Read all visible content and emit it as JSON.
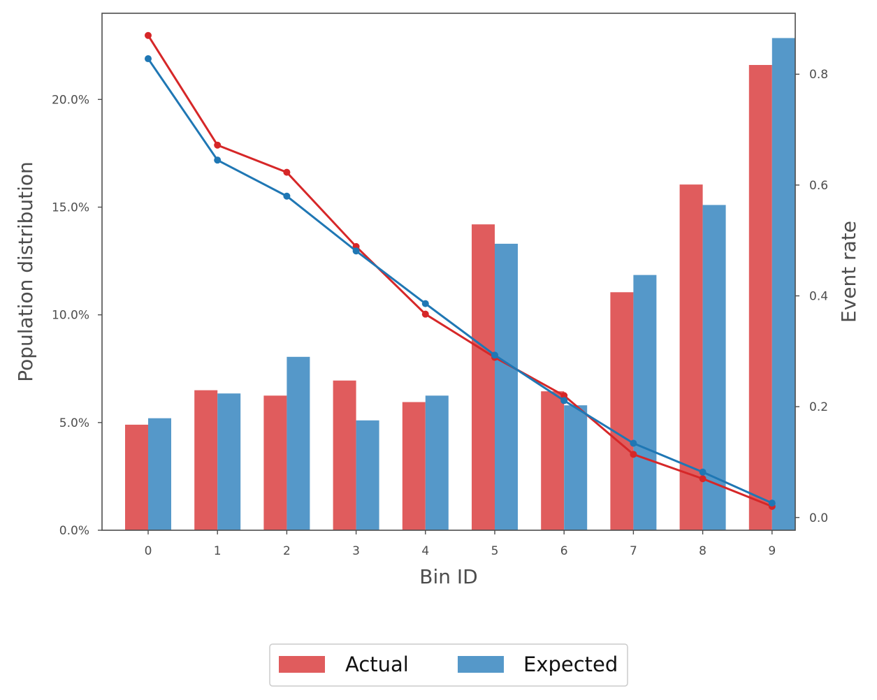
{
  "chart_data": {
    "type": "bar",
    "categories": [
      "0",
      "1",
      "2",
      "3",
      "4",
      "5",
      "6",
      "7",
      "8",
      "9"
    ],
    "series": [
      {
        "name": "Actual",
        "color": "#e05c5d",
        "line_color": "#d62728",
        "values": [
          4.9,
          6.5,
          6.25,
          6.95,
          5.95,
          14.2,
          6.45,
          11.05,
          16.05,
          21.6
        ],
        "event_rate": [
          0.87,
          0.672,
          0.623,
          0.489,
          0.367,
          0.289,
          0.22,
          0.114,
          0.07,
          0.02
        ]
      },
      {
        "name": "Expected",
        "color": "#5598c9",
        "line_color": "#1f77b4",
        "values": [
          5.2,
          6.35,
          8.05,
          5.1,
          6.25,
          13.3,
          5.8,
          11.85,
          15.1,
          22.85
        ],
        "event_rate": [
          0.828,
          0.645,
          0.58,
          0.481,
          0.386,
          0.293,
          0.211,
          0.134,
          0.082,
          0.026
        ]
      }
    ],
    "xlabel": "Bin ID",
    "ylabel": "Population distribution",
    "y2label": "Event rate",
    "ylim": [
      0,
      24
    ],
    "y2lim": [
      -0.023,
      0.91
    ],
    "yticks": [
      0,
      5,
      10,
      15,
      20
    ],
    "ytick_labels": [
      "0.0%",
      "5.0%",
      "10.0%",
      "15.0%",
      "20.0%"
    ],
    "y2ticks": [
      0.0,
      0.2,
      0.4,
      0.6,
      0.8
    ],
    "y2tick_labels": [
      "0.0",
      "0.2",
      "0.4",
      "0.6",
      "0.8"
    ],
    "grid": false,
    "legend_position": "bottom-center"
  }
}
